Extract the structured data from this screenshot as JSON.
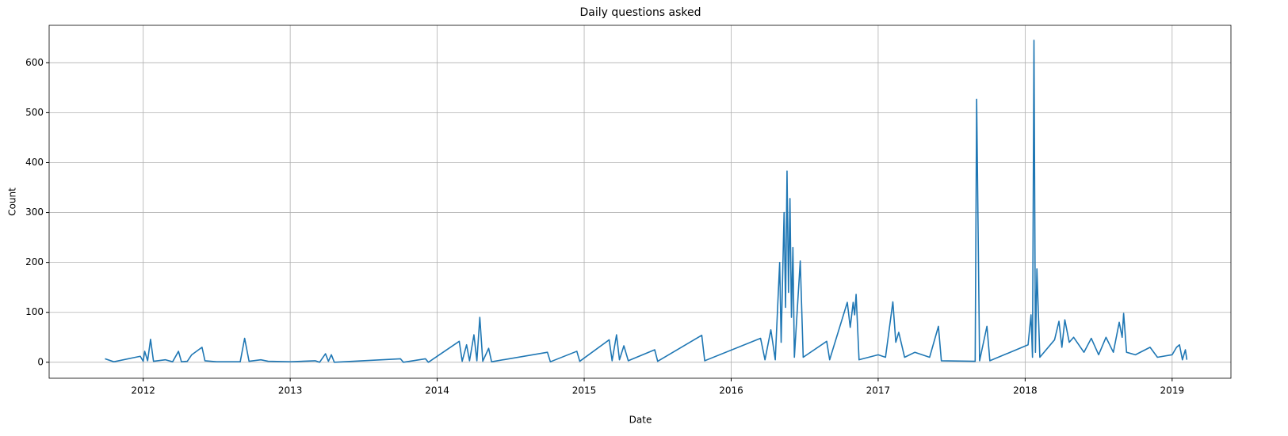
{
  "chart_data": {
    "type": "line",
    "title": "Daily questions asked",
    "x_label": "Date",
    "y_label": "Count",
    "x": [
      2011.74,
      2011.8,
      2011.98,
      2012.0,
      2012.01,
      2012.03,
      2012.05,
      2012.07,
      2012.15,
      2012.2,
      2012.24,
      2012.26,
      2012.3,
      2012.33,
      2012.4,
      2012.42,
      2012.5,
      2012.66,
      2012.69,
      2012.72,
      2012.8,
      2012.85,
      2013.0,
      2013.17,
      2013.2,
      2013.24,
      2013.26,
      2013.28,
      2013.3,
      2013.75,
      2013.77,
      2013.92,
      2013.94,
      2014.15,
      2014.17,
      2014.2,
      2014.22,
      2014.25,
      2014.27,
      2014.29,
      2014.31,
      2014.35,
      2014.37,
      2014.75,
      2014.77,
      2014.95,
      2014.97,
      2015.17,
      2015.19,
      2015.22,
      2015.24,
      2015.27,
      2015.3,
      2015.48,
      2015.5,
      2015.8,
      2015.82,
      2016.2,
      2016.23,
      2016.27,
      2016.3,
      2016.33,
      2016.34,
      2016.36,
      2016.37,
      2016.38,
      2016.39,
      2016.4,
      2016.41,
      2016.42,
      2016.43,
      2016.47,
      2016.49,
      2016.65,
      2016.67,
      2016.79,
      2016.81,
      2016.83,
      2016.84,
      2016.85,
      2016.87,
      2017.0,
      2017.05,
      2017.1,
      2017.12,
      2017.14,
      2017.18,
      2017.25,
      2017.35,
      2017.41,
      2017.43,
      2017.66,
      2017.67,
      2017.69,
      2017.74,
      2017.76,
      2018.02,
      2018.04,
      2018.05,
      2018.06,
      2018.07,
      2018.08,
      2018.1,
      2018.2,
      2018.23,
      2018.25,
      2018.27,
      2018.3,
      2018.33,
      2018.4,
      2018.45,
      2018.5,
      2018.55,
      2018.6,
      2018.64,
      2018.66,
      2018.67,
      2018.69,
      2018.75,
      2018.85,
      2018.9,
      2019.0,
      2019.03,
      2019.05,
      2019.07,
      2019.09,
      2019.1
    ],
    "series": [
      {
        "name": "Count",
        "color": "#1f77b4",
        "values": [
          7,
          1,
          12,
          2,
          22,
          3,
          46,
          2,
          5,
          1,
          22,
          1,
          2,
          15,
          30,
          3,
          1,
          1,
          48,
          2,
          5,
          2,
          1,
          3,
          0,
          17,
          2,
          15,
          0,
          7,
          0,
          7,
          0,
          42,
          2,
          35,
          3,
          55,
          3,
          90,
          2,
          28,
          1,
          20,
          1,
          22,
          2,
          45,
          3,
          55,
          5,
          33,
          3,
          25,
          2,
          54,
          3,
          48,
          5,
          65,
          5,
          200,
          40,
          300,
          110,
          383,
          140,
          328,
          90,
          230,
          10,
          203,
          10,
          42,
          5,
          120,
          70,
          120,
          95,
          136,
          5,
          15,
          10,
          121,
          40,
          60,
          10,
          20,
          10,
          72,
          3,
          2,
          527,
          3,
          72,
          3,
          35,
          95,
          10,
          645,
          20,
          187,
          10,
          45,
          82,
          30,
          85,
          40,
          50,
          20,
          48,
          15,
          50,
          20,
          80,
          50,
          98,
          20,
          15,
          30,
          10,
          15,
          30,
          35,
          5,
          25,
          5
        ]
      }
    ],
    "xlim": [
      2011.36,
      2019.4
    ],
    "xticks": [
      2012,
      2013,
      2014,
      2015,
      2016,
      2017,
      2018,
      2019
    ],
    "ylim": [
      -32,
      675
    ],
    "yticks": [
      0,
      100,
      200,
      300,
      400,
      500,
      600
    ],
    "grid": true
  }
}
